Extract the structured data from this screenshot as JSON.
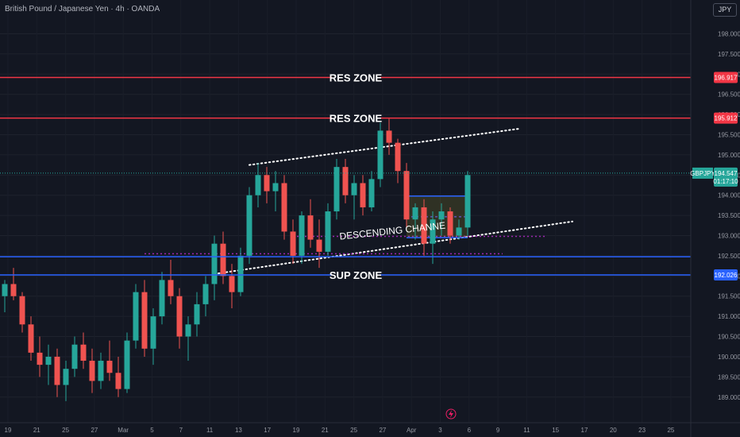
{
  "header": {
    "title": "British Pound / Japanese Yen · 4h · OANDA",
    "currency": "JPY"
  },
  "colors": {
    "background": "#131722",
    "up": "#26a69a",
    "down": "#ef5350",
    "resistance": "#f23645",
    "support": "#2962ff",
    "channel": "#ffffff",
    "dotted_level": "#9c27b0"
  },
  "chart_data": {
    "type": "candlestick",
    "symbol": "GBPJPY",
    "timeframe": "4h",
    "y_ticks": [
      "189.000",
      "189.500",
      "190.000",
      "190.500",
      "191.000",
      "191.500",
      "192.000",
      "192.500",
      "193.000",
      "193.500",
      "194.000",
      "194.500",
      "195.000",
      "195.500",
      "196.000",
      "196.500",
      "197.000",
      "197.500",
      "198.000"
    ],
    "x_ticks": [
      "19",
      "21",
      "25",
      "27",
      "Mar",
      "5",
      "7",
      "11",
      "13",
      "17",
      "19",
      "21",
      "25",
      "27",
      "Apr",
      "3",
      "6",
      "9",
      "11",
      "15",
      "17",
      "20",
      "23",
      "25"
    ],
    "ylim": [
      188.7,
      198.6
    ],
    "last_price": {
      "label": "GBPJPY",
      "price": "194.547",
      "countdown": "01:17:10",
      "value": 194.547
    },
    "levels": [
      {
        "label": "RES ZONE",
        "price": "196.917",
        "value": 196.917,
        "kind": "resistance"
      },
      {
        "label": "RES ZONE",
        "price": "195.912",
        "value": 195.912,
        "kind": "resistance"
      },
      {
        "label": "SUP ZONE",
        "price": "192.026",
        "value": 192.026,
        "kind": "support"
      }
    ],
    "pattern_label": "DESCENDING CHANNE",
    "channel_lines": [
      {
        "name": "upper",
        "start": [
          28,
          194.75
        ],
        "end": [
          59,
          195.65
        ]
      },
      {
        "name": "lower",
        "start": [
          24,
          192.05
        ],
        "end": [
          65,
          193.35
        ]
      }
    ],
    "range_box": {
      "x0": 46,
      "x1": 53,
      "top": 193.98,
      "bottom": 192.95
    },
    "candles_ohlc": [
      [
        191.5,
        191.9,
        191.1,
        191.8
      ],
      [
        191.8,
        192.2,
        191.4,
        191.5
      ],
      [
        191.5,
        191.6,
        190.6,
        190.8
      ],
      [
        190.8,
        191.0,
        189.9,
        190.1
      ],
      [
        190.1,
        190.5,
        189.5,
        189.8
      ],
      [
        189.8,
        190.3,
        189.3,
        190.0
      ],
      [
        190.0,
        190.2,
        189.0,
        189.3
      ],
      [
        189.3,
        189.9,
        188.9,
        189.7
      ],
      [
        189.7,
        190.5,
        189.5,
        190.3
      ],
      [
        190.3,
        190.6,
        189.7,
        189.9
      ],
      [
        189.9,
        190.2,
        189.1,
        189.4
      ],
      [
        189.4,
        190.1,
        189.2,
        189.9
      ],
      [
        189.9,
        190.4,
        189.4,
        189.6
      ],
      [
        189.6,
        190.0,
        189.0,
        189.2
      ],
      [
        189.2,
        190.6,
        189.1,
        190.4
      ],
      [
        190.4,
        191.8,
        190.2,
        191.6
      ],
      [
        191.6,
        191.9,
        190.0,
        190.2
      ],
      [
        190.2,
        191.2,
        189.8,
        191.0
      ],
      [
        191.0,
        192.1,
        190.8,
        191.9
      ],
      [
        191.9,
        192.4,
        191.3,
        191.5
      ],
      [
        191.5,
        191.7,
        190.2,
        190.5
      ],
      [
        190.5,
        191.0,
        189.9,
        190.8
      ],
      [
        190.8,
        191.6,
        190.5,
        191.3
      ],
      [
        191.3,
        192.0,
        191.0,
        191.8
      ],
      [
        191.8,
        193.0,
        191.4,
        192.8
      ],
      [
        192.8,
        193.1,
        191.8,
        192.0
      ],
      [
        192.0,
        192.3,
        191.2,
        191.6
      ],
      [
        191.6,
        192.7,
        191.5,
        192.5
      ],
      [
        192.5,
        194.2,
        192.3,
        194.0
      ],
      [
        194.0,
        194.8,
        193.7,
        194.5
      ],
      [
        194.5,
        194.7,
        193.8,
        194.1
      ],
      [
        194.1,
        194.6,
        193.6,
        194.3
      ],
      [
        194.3,
        194.5,
        192.9,
        193.1
      ],
      [
        193.1,
        193.4,
        192.3,
        192.5
      ],
      [
        192.5,
        193.6,
        192.3,
        193.5
      ],
      [
        193.5,
        193.9,
        192.7,
        192.9
      ],
      [
        192.9,
        193.4,
        192.2,
        192.6
      ],
      [
        192.6,
        193.8,
        192.5,
        193.6
      ],
      [
        193.6,
        194.9,
        193.4,
        194.7
      ],
      [
        194.7,
        194.9,
        193.8,
        194.0
      ],
      [
        194.0,
        194.5,
        193.4,
        194.3
      ],
      [
        194.3,
        194.5,
        193.5,
        193.7
      ],
      [
        193.7,
        194.6,
        193.6,
        194.4
      ],
      [
        194.4,
        195.8,
        194.2,
        195.6
      ],
      [
        195.6,
        195.9,
        195.0,
        195.3
      ],
      [
        195.3,
        195.4,
        194.3,
        194.6
      ],
      [
        194.6,
        194.8,
        193.2,
        193.4
      ],
      [
        193.4,
        193.8,
        192.9,
        193.7
      ],
      [
        193.7,
        193.9,
        192.5,
        192.8
      ],
      [
        192.8,
        193.6,
        192.3,
        193.4
      ],
      [
        193.4,
        193.8,
        193.0,
        193.6
      ],
      [
        193.6,
        193.7,
        192.8,
        193.0
      ],
      [
        193.0,
        193.4,
        192.9,
        193.2
      ],
      [
        193.2,
        194.6,
        193.0,
        194.5
      ]
    ]
  }
}
